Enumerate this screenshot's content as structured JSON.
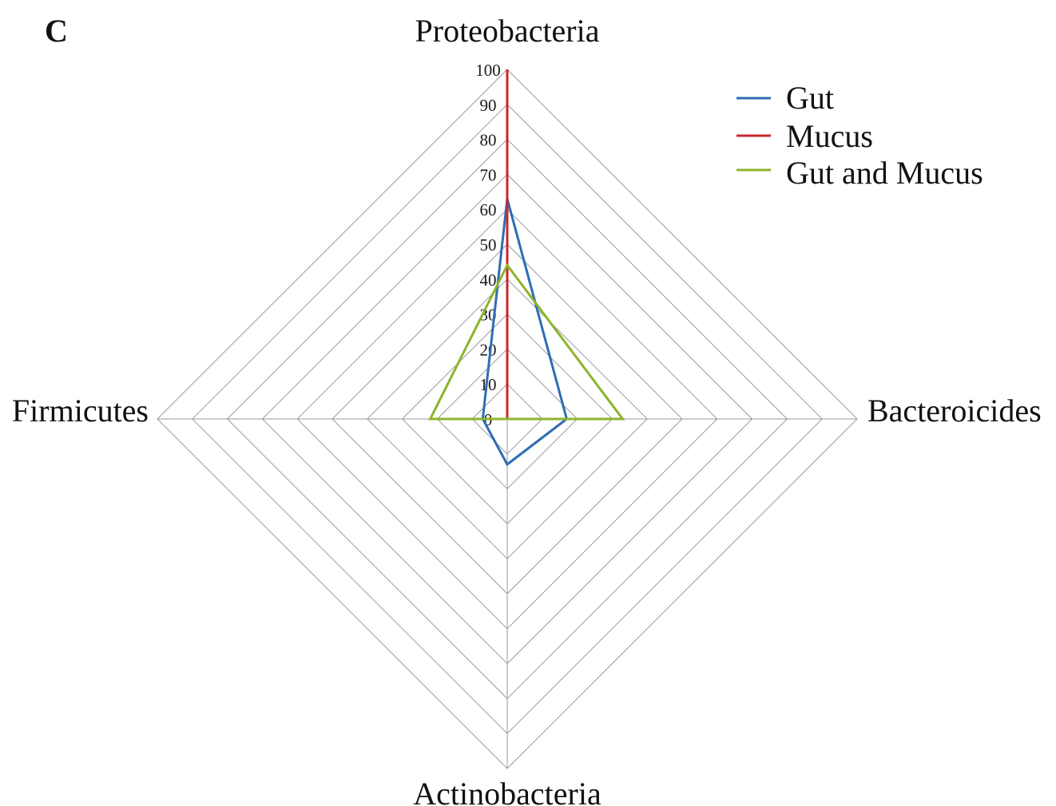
{
  "panel_label": "C",
  "chart_data": {
    "type": "radar",
    "axes": [
      "Proteobacteria",
      "Bacteroicides",
      "Actinobacteria",
      "Firmicutes"
    ],
    "ticks": [
      "0",
      "10",
      "20",
      "30",
      "40",
      "50",
      "60",
      "70",
      "80",
      "90",
      "100"
    ],
    "range": [
      0,
      100
    ],
    "grid": true,
    "legend_position": "top-right",
    "series": [
      {
        "name": "Gut",
        "color": "#2e6db4",
        "values": [
          63,
          17,
          13,
          7
        ]
      },
      {
        "name": "Mucus",
        "color": "#c8282e",
        "values": [
          100,
          0,
          0,
          0
        ]
      },
      {
        "name": "Gut and Mucus",
        "color": "#8db42c",
        "values": [
          44,
          33,
          0,
          22
        ]
      }
    ]
  }
}
